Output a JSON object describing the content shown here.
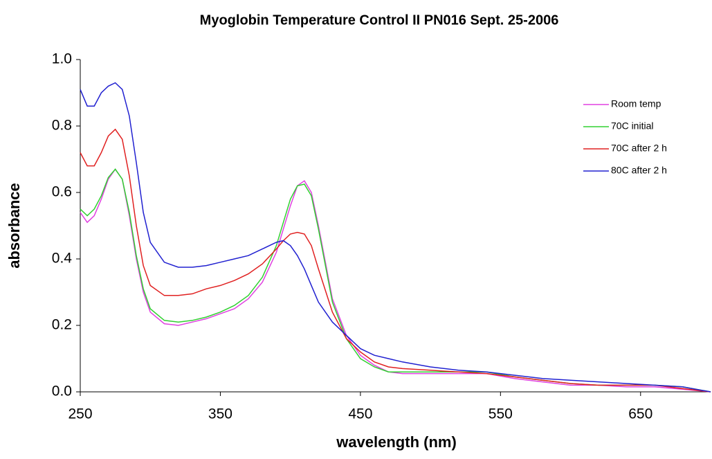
{
  "chart_data": {
    "type": "line",
    "title": "Myoglobin Temperature Control II PN016 Sept. 25-2006",
    "x_label": "wavelength (nm)",
    "y_label": "absorbance",
    "x": [
      250,
      255,
      260,
      265,
      270,
      275,
      280,
      285,
      290,
      295,
      300,
      310,
      320,
      330,
      340,
      350,
      360,
      370,
      380,
      390,
      395,
      400,
      405,
      410,
      415,
      420,
      430,
      440,
      450,
      460,
      470,
      480,
      500,
      520,
      540,
      560,
      580,
      600,
      620,
      640,
      660,
      680,
      700
    ],
    "series": [
      {
        "name": "Room temp",
        "color": "#e040e0",
        "values": [
          0.54,
          0.51,
          0.53,
          0.58,
          0.64,
          0.67,
          0.64,
          0.53,
          0.4,
          0.3,
          0.24,
          0.205,
          0.2,
          0.21,
          0.22,
          0.235,
          0.25,
          0.28,
          0.33,
          0.42,
          0.49,
          0.56,
          0.62,
          0.635,
          0.6,
          0.5,
          0.28,
          0.17,
          0.11,
          0.08,
          0.06,
          0.055,
          0.055,
          0.055,
          0.055,
          0.04,
          0.03,
          0.02,
          0.02,
          0.015,
          0.015,
          0.008,
          0
        ]
      },
      {
        "name": "70C initial",
        "color": "#30d030",
        "values": [
          0.55,
          0.53,
          0.55,
          0.59,
          0.645,
          0.67,
          0.64,
          0.54,
          0.41,
          0.31,
          0.25,
          0.215,
          0.21,
          0.215,
          0.225,
          0.24,
          0.26,
          0.29,
          0.345,
          0.44,
          0.51,
          0.58,
          0.62,
          0.625,
          0.59,
          0.49,
          0.27,
          0.16,
          0.1,
          0.075,
          0.06,
          0.06,
          0.06,
          0.06,
          0.06,
          0.045,
          0.035,
          0.025,
          0.02,
          0.02,
          0.02,
          0.015,
          0
        ]
      },
      {
        "name": "70C after 2 h",
        "color": "#e02020",
        "values": [
          0.72,
          0.68,
          0.68,
          0.72,
          0.77,
          0.79,
          0.76,
          0.65,
          0.5,
          0.38,
          0.32,
          0.29,
          0.29,
          0.295,
          0.31,
          0.32,
          0.335,
          0.355,
          0.385,
          0.43,
          0.455,
          0.475,
          0.48,
          0.475,
          0.44,
          0.37,
          0.24,
          0.16,
          0.12,
          0.09,
          0.075,
          0.07,
          0.065,
          0.06,
          0.055,
          0.045,
          0.035,
          0.025,
          0.02,
          0.02,
          0.02,
          0.01,
          0
        ]
      },
      {
        "name": "80C after 2 h",
        "color": "#2020d0",
        "values": [
          0.91,
          0.86,
          0.86,
          0.9,
          0.92,
          0.93,
          0.91,
          0.83,
          0.69,
          0.54,
          0.45,
          0.39,
          0.375,
          0.375,
          0.38,
          0.39,
          0.4,
          0.41,
          0.43,
          0.45,
          0.455,
          0.44,
          0.41,
          0.37,
          0.32,
          0.27,
          0.21,
          0.17,
          0.13,
          0.11,
          0.1,
          0.09,
          0.075,
          0.065,
          0.06,
          0.05,
          0.04,
          0.035,
          0.03,
          0.025,
          0.02,
          0.015,
          0
        ]
      }
    ],
    "xlim": [
      250,
      700
    ],
    "xticks": [
      250,
      350,
      450,
      550,
      650
    ],
    "ylim": [
      0,
      1
    ],
    "yticks": [
      {
        "value": 0,
        "label": "0.0"
      },
      0.2,
      0.4,
      0.6,
      0.8,
      {
        "value": 1,
        "label": "1.0"
      }
    ],
    "grid": false,
    "legend": "top-right"
  }
}
